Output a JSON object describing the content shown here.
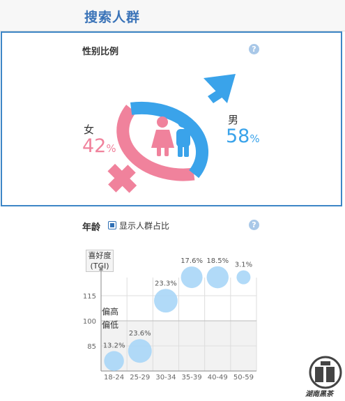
{
  "header": {
    "title": "搜索人群"
  },
  "gender": {
    "title": "性别比例",
    "help_icon": "?",
    "female": {
      "label": "女",
      "percent": 42,
      "pct_text": "42",
      "unit": "%",
      "color": "#f0829c"
    },
    "male": {
      "label": "男",
      "percent": 58,
      "pct_text": "58",
      "unit": "%",
      "color": "#3aa3ea"
    }
  },
  "age": {
    "title": "年龄",
    "help_icon": "?",
    "show_ratio_label": "显示人群占比",
    "show_ratio_checked": true,
    "tgi_label_line1": "喜好度",
    "tgi_label_line2": "(TGI)",
    "high_label": "偏高",
    "low_label": "偏低"
  },
  "watermark": {
    "text": "湖南黑茶"
  },
  "chart_data": {
    "type": "scatter",
    "categories": [
      "18-24",
      "25-29",
      "30-34",
      "35-39",
      "40-49",
      "50-59"
    ],
    "y_ticks": [
      85,
      100,
      115
    ],
    "ylim": [
      70,
      130
    ],
    "baseline": 100,
    "series": [
      {
        "values": [
          {
            "category": "18-24",
            "tgi": 76,
            "share_label": "13.2%",
            "share": 13.2
          },
          {
            "category": "25-29",
            "tgi": 82,
            "share_label": "23.6%",
            "share": 23.6
          },
          {
            "category": "30-34",
            "tgi": 112,
            "share_label": "23.3%",
            "share": 23.3
          },
          {
            "category": "35-39",
            "tgi": 126,
            "share_label": "17.6%",
            "share": 17.6
          },
          {
            "category": "40-49",
            "tgi": 126,
            "share_label": "18.5%",
            "share": 18.5
          },
          {
            "category": "50-59",
            "tgi": 126,
            "share_label": "3.1%",
            "share": 3.1
          }
        ]
      }
    ],
    "bubble_color": "#a9d6f7",
    "grid": true
  }
}
